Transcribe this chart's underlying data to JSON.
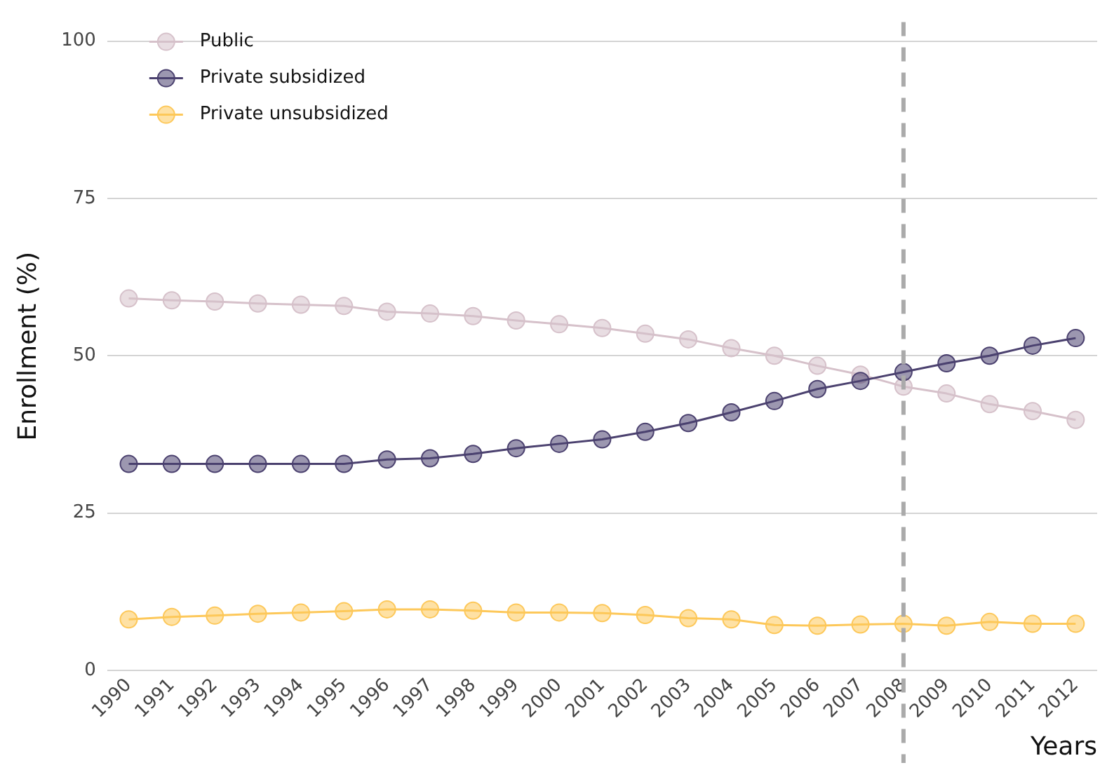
{
  "chart_data": {
    "type": "line",
    "xlabel": "Years",
    "ylabel": "Enrollment (%)",
    "categories": [
      "1990",
      "1991",
      "1992",
      "1993",
      "1994",
      "1995",
      "1996",
      "1997",
      "1998",
      "1999",
      "2000",
      "2001",
      "2002",
      "2003",
      "2004",
      "2005",
      "2006",
      "2007",
      "2008",
      "2009",
      "2010",
      "2011",
      "2012"
    ],
    "series": [
      {
        "name": "Public",
        "color": "#d6c1ca",
        "values": [
          59.1,
          58.8,
          58.6,
          58.3,
          58.1,
          57.9,
          57.0,
          56.7,
          56.3,
          55.6,
          55.0,
          54.4,
          53.5,
          52.6,
          51.2,
          50.0,
          48.4,
          47.0,
          45.1,
          44.0,
          42.3,
          41.2,
          39.8
        ]
      },
      {
        "name": "Private subsidized",
        "color": "#4b416f",
        "values": [
          32.8,
          32.8,
          32.8,
          32.8,
          32.8,
          32.8,
          33.5,
          33.7,
          34.4,
          35.3,
          36.0,
          36.7,
          37.9,
          39.3,
          41.0,
          42.8,
          44.7,
          46.0,
          47.4,
          48.8,
          50.0,
          51.6,
          52.8
        ]
      },
      {
        "name": "Private unsubsidized",
        "color": "#fdc85a",
        "values": [
          8.1,
          8.5,
          8.7,
          9.0,
          9.2,
          9.4,
          9.7,
          9.7,
          9.5,
          9.2,
          9.2,
          9.1,
          8.8,
          8.3,
          8.1,
          7.2,
          7.1,
          7.3,
          7.4,
          7.1,
          7.7,
          7.4,
          7.4
        ]
      }
    ],
    "ylim": [
      0,
      103
    ],
    "yticks": [
      0,
      25,
      50,
      75,
      100
    ],
    "grid": "y",
    "legend": "top left",
    "marker": "circle",
    "line_style": "solid",
    "ref_lines": [
      {
        "axis": "x",
        "value": "2008",
        "color": "#aaaaaa",
        "line_style": "dashed"
      }
    ]
  }
}
